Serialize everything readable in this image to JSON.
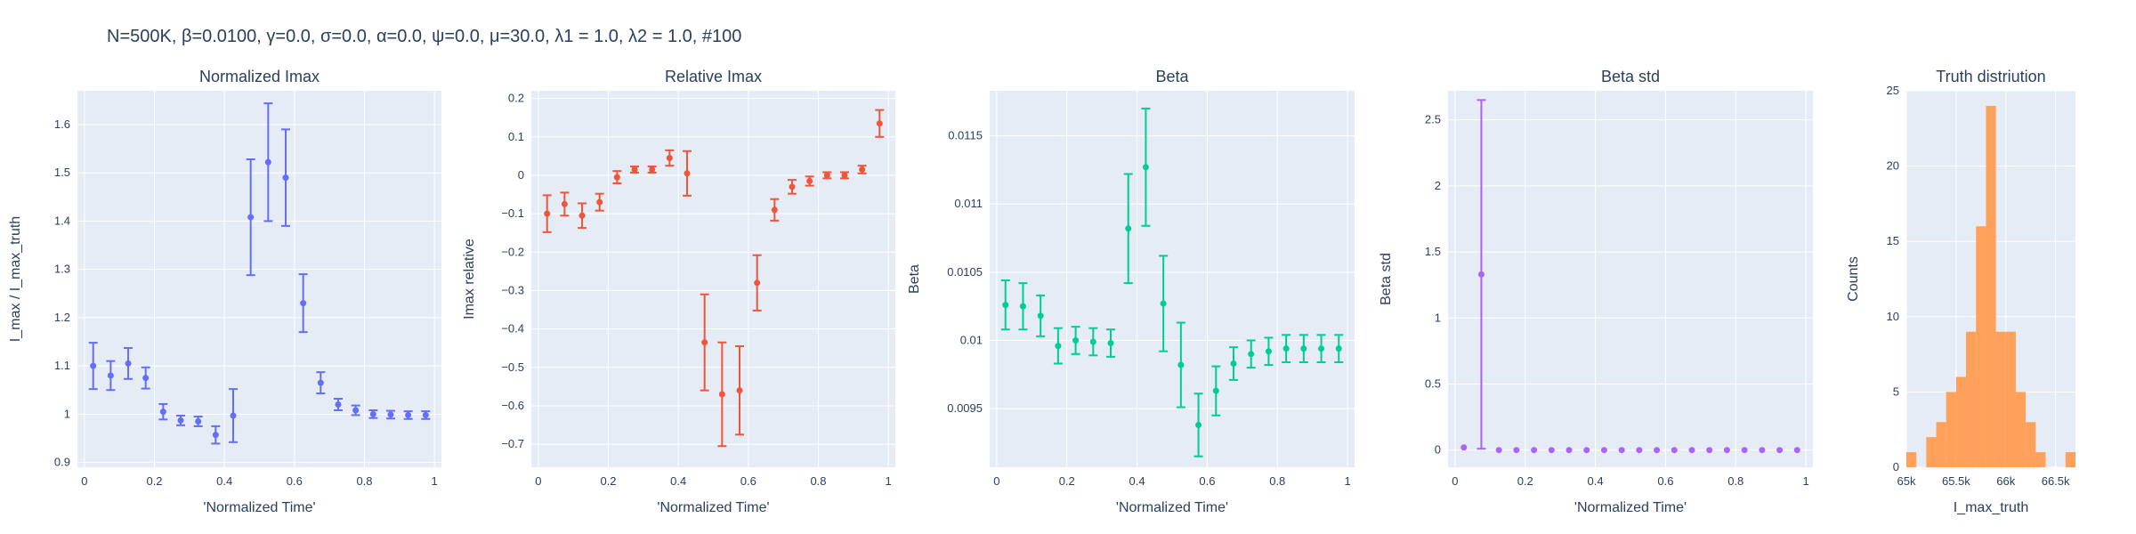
{
  "figure": {
    "title": "N=500K, β=0.0100, γ=0.0, σ=0.0,  α=0.0, ψ=0.0, μ=30.0, λ1 = 1.0, λ2 = 1.0, #100"
  },
  "chart_data": [
    {
      "type": "scatter",
      "title": "Normalized Imax",
      "xlabel": "'Normalized Time'",
      "ylabel": "I_max / I_max_truth",
      "color": "#636efa",
      "xlim": [
        -0.02,
        1.02
      ],
      "ylim": [
        0.89,
        1.67
      ],
      "xticks": [
        0,
        0.2,
        0.4,
        0.6,
        0.8,
        1
      ],
      "xticklabels": [
        "0",
        "0.2",
        "0.4",
        "0.6",
        "0.8",
        "1"
      ],
      "yticks": [
        0.9,
        1,
        1.1,
        1.2,
        1.3,
        1.4,
        1.5,
        1.6
      ],
      "yticklabels": [
        "0.9",
        "1",
        "1.1",
        "1.2",
        "1.3",
        "1.4",
        "1.5",
        "1.6"
      ],
      "x": [
        0.025,
        0.075,
        0.125,
        0.175,
        0.225,
        0.275,
        0.325,
        0.375,
        0.425,
        0.475,
        0.525,
        0.575,
        0.625,
        0.675,
        0.725,
        0.775,
        0.825,
        0.875,
        0.925,
        0.975
      ],
      "y": [
        1.1,
        1.08,
        1.105,
        1.075,
        1.005,
        0.987,
        0.985,
        0.957,
        0.997,
        1.408,
        1.522,
        1.49,
        1.23,
        1.065,
        1.02,
        1.008,
        1.0,
        0.999,
        0.998,
        0.998
      ],
      "err": [
        0.048,
        0.03,
        0.032,
        0.022,
        0.016,
        0.01,
        0.01,
        0.018,
        0.055,
        0.12,
        0.122,
        0.1,
        0.06,
        0.022,
        0.012,
        0.01,
        0.008,
        0.008,
        0.008,
        0.008
      ]
    },
    {
      "type": "scatter",
      "title": "Relative Imax",
      "xlabel": "'Normalized Time'",
      "ylabel": "Imax relative",
      "color": "#EF553B",
      "xlim": [
        -0.02,
        1.02
      ],
      "ylim": [
        -0.76,
        0.22
      ],
      "xticks": [
        0,
        0.2,
        0.4,
        0.6,
        0.8,
        1
      ],
      "xticklabels": [
        "0",
        "0.2",
        "0.4",
        "0.6",
        "0.8",
        "1"
      ],
      "yticks": [
        -0.7,
        -0.6,
        -0.5,
        -0.4,
        -0.3,
        -0.2,
        -0.1,
        0,
        0.1,
        0.2
      ],
      "yticklabels": [
        "−0.7",
        "−0.6",
        "−0.5",
        "−0.4",
        "−0.3",
        "−0.2",
        "−0.1",
        "0",
        "0.1",
        "0.2"
      ],
      "x": [
        0.025,
        0.075,
        0.125,
        0.175,
        0.225,
        0.275,
        0.325,
        0.375,
        0.425,
        0.475,
        0.525,
        0.575,
        0.625,
        0.675,
        0.725,
        0.775,
        0.825,
        0.875,
        0.925,
        0.975
      ],
      "y": [
        -0.1,
        -0.075,
        -0.105,
        -0.07,
        -0.005,
        0.015,
        0.015,
        0.045,
        0.005,
        -0.435,
        -0.57,
        -0.56,
        -0.28,
        -0.09,
        -0.03,
        -0.015,
        0.0,
        0.0,
        0.015,
        0.135
      ],
      "err": [
        0.048,
        0.03,
        0.032,
        0.022,
        0.016,
        0.008,
        0.008,
        0.02,
        0.058,
        0.125,
        0.135,
        0.115,
        0.072,
        0.028,
        0.018,
        0.012,
        0.008,
        0.008,
        0.01,
        0.035
      ]
    },
    {
      "type": "scatter",
      "title": "Beta",
      "xlabel": "'Normalized Time'",
      "ylabel": "Beta",
      "color": "#00cc96",
      "xlim": [
        -0.02,
        1.02
      ],
      "ylim": [
        0.00907,
        0.01183
      ],
      "xticks": [
        0,
        0.2,
        0.4,
        0.6,
        0.8,
        1
      ],
      "xticklabels": [
        "0",
        "0.2",
        "0.4",
        "0.6",
        "0.8",
        "1"
      ],
      "yticks": [
        0.0095,
        0.01,
        0.0105,
        0.011,
        0.0115
      ],
      "yticklabels": [
        "0.0095",
        "0.01",
        "0.0105",
        "0.011",
        "0.0115"
      ],
      "x": [
        0.025,
        0.075,
        0.125,
        0.175,
        0.225,
        0.275,
        0.325,
        0.375,
        0.425,
        0.475,
        0.525,
        0.575,
        0.625,
        0.675,
        0.725,
        0.775,
        0.825,
        0.875,
        0.925,
        0.975
      ],
      "y": [
        0.01026,
        0.01025,
        0.01018,
        0.00996,
        0.01,
        0.00999,
        0.00998,
        0.01082,
        0.01127,
        0.01027,
        0.00982,
        0.00938,
        0.00963,
        0.00983,
        0.0099,
        0.00992,
        0.00994,
        0.00994,
        0.00994,
        0.00994
      ],
      "err": [
        0.00018,
        0.00017,
        0.00015,
        0.00013,
        0.0001,
        0.0001,
        0.0001,
        0.0004,
        0.00043,
        0.00035,
        0.00031,
        0.00023,
        0.00018,
        0.00012,
        0.0001,
        0.0001,
        0.0001,
        0.0001,
        0.0001,
        0.0001
      ]
    },
    {
      "type": "scatter",
      "title": "Beta std",
      "xlabel": "'Normalized Time'",
      "ylabel": "Beta std",
      "color": "#ab63fa",
      "xlim": [
        -0.02,
        1.02
      ],
      "ylim": [
        -0.13,
        2.72
      ],
      "xticks": [
        0,
        0.2,
        0.4,
        0.6,
        0.8,
        1
      ],
      "xticklabels": [
        "0",
        "0.2",
        "0.4",
        "0.6",
        "0.8",
        "1"
      ],
      "yticks": [
        0,
        0.5,
        1,
        1.5,
        2,
        2.5
      ],
      "yticklabels": [
        "0",
        "0.5",
        "1",
        "1.5",
        "2",
        "2.5"
      ],
      "x": [
        0.025,
        0.075,
        0.125,
        0.175,
        0.225,
        0.275,
        0.325,
        0.375,
        0.425,
        0.475,
        0.525,
        0.575,
        0.625,
        0.675,
        0.725,
        0.775,
        0.825,
        0.875,
        0.925,
        0.975
      ],
      "y": [
        0.02,
        1.33,
        0.0,
        0.0,
        0.0,
        0.0,
        0.0,
        0.0,
        0.0,
        0.0,
        0.0,
        0.0,
        0.0,
        0.0,
        0.0,
        0.0,
        0.0,
        0.0,
        0.0,
        0.0
      ],
      "err": [
        0,
        1.32,
        0,
        0,
        0,
        0,
        0,
        0,
        0,
        0,
        0,
        0,
        0,
        0,
        0,
        0,
        0,
        0,
        0,
        0
      ]
    },
    {
      "type": "bar",
      "title": "Truth distriution",
      "xlabel": "I_max_truth",
      "ylabel": "Counts",
      "color": "#FFA15A",
      "xlim": [
        65000,
        66700
      ],
      "ylim": [
        0,
        25
      ],
      "xticks": [
        65000,
        65500,
        66000,
        66500
      ],
      "xticklabels": [
        "65k",
        "65.5k",
        "66k",
        "66.5k"
      ],
      "yticks": [
        0,
        5,
        10,
        15,
        20,
        25
      ],
      "yticklabels": [
        "0",
        "5",
        "10",
        "15",
        "20",
        "25"
      ],
      "bin_width": 100,
      "bin_starts": [
        65000,
        65100,
        65200,
        65300,
        65400,
        65500,
        65600,
        65700,
        65800,
        65900,
        66000,
        66100,
        66200,
        66300,
        66400,
        66500,
        66600
      ],
      "values": [
        1,
        0,
        2,
        3,
        5,
        6,
        9,
        16,
        24,
        9,
        9,
        5,
        3,
        1,
        0,
        0,
        1
      ]
    }
  ]
}
